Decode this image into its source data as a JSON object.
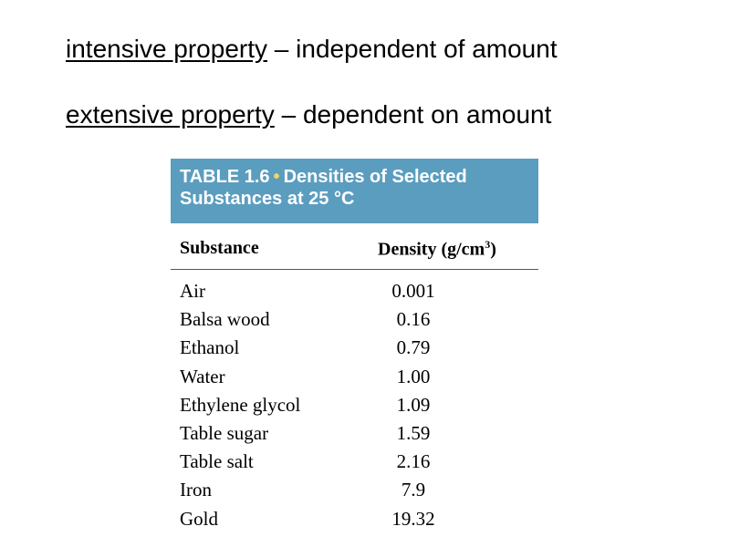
{
  "definitions": [
    {
      "term": "intensive property",
      "separator": " – ",
      "description": "independent of amount"
    },
    {
      "term": "extensive property",
      "separator": " – ",
      "description": "dependent on amount"
    }
  ],
  "table": {
    "title_line1_a": "TABLE 1.6",
    "title_bullet": "•",
    "title_line1_b": "Densities of Selected",
    "title_line2": "Substances at 25 °C",
    "column_substance": "Substance",
    "column_density_prefix": "Density (g/cm",
    "column_density_sup": "3",
    "column_density_suffix": ")",
    "rows": [
      {
        "substance": "Air",
        "density": "0.001"
      },
      {
        "substance": "Balsa wood",
        "density": "0.16"
      },
      {
        "substance": "Ethanol",
        "density": "0.79"
      },
      {
        "substance": "Water",
        "density": "1.00"
      },
      {
        "substance": "Ethylene glycol",
        "density": "1.09"
      },
      {
        "substance": "Table sugar",
        "density": "1.59"
      },
      {
        "substance": "Table salt",
        "density": "2.16"
      },
      {
        "substance": "Iron",
        "density": "7.9"
      },
      {
        "substance": "Gold",
        "density": "19.32"
      }
    ]
  },
  "colors": {
    "table_header_bg": "#5b9dbf",
    "bullet": "#f3d65c"
  }
}
